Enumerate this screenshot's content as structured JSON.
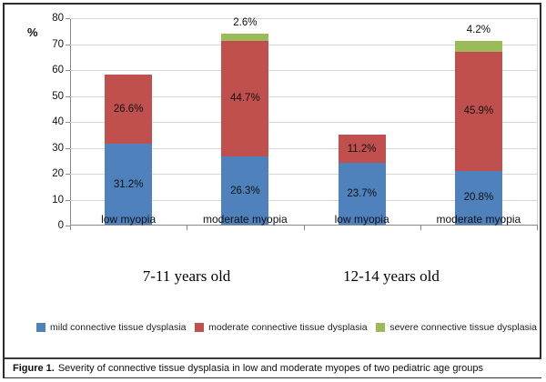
{
  "figure": {
    "caption_bold": "Figure 1.",
    "caption_rest": "Severity of connective tissue dysplasia in low and moderate myopes of two pediatric age groups"
  },
  "chart_data": {
    "type": "bar",
    "stacked": true,
    "title": "",
    "xlabel": "",
    "ylabel": "%",
    "ylim": [
      0,
      80
    ],
    "ytick_step": 10,
    "grid": "horizontal",
    "legend_position": "bottom",
    "categories": [
      "low myopia",
      "moderate myopia",
      "low myopia",
      "moderate myopia"
    ],
    "groups": [
      "7-11 years old",
      "12-14 years old"
    ],
    "series": [
      {
        "name": "mild connective tissue dysplasia",
        "color": "#4F81BD",
        "values": [
          31.2,
          26.3,
          23.7,
          20.8
        ],
        "labels": [
          "31.2%",
          "26.3%",
          "23.7%",
          "20.8%"
        ]
      },
      {
        "name": "moderate connective tissue dysplasia",
        "color": "#C0504D",
        "values": [
          26.6,
          44.7,
          11.2,
          45.9
        ],
        "labels": [
          "26.6%",
          "44.7%",
          "11.2%",
          "45.9%"
        ]
      },
      {
        "name": "severe connective tissue dysplasia",
        "color": "#9BBB59",
        "values": [
          0,
          2.6,
          0,
          4.2
        ],
        "labels": [
          "",
          "2.6%",
          "",
          "4.2%"
        ]
      }
    ]
  }
}
